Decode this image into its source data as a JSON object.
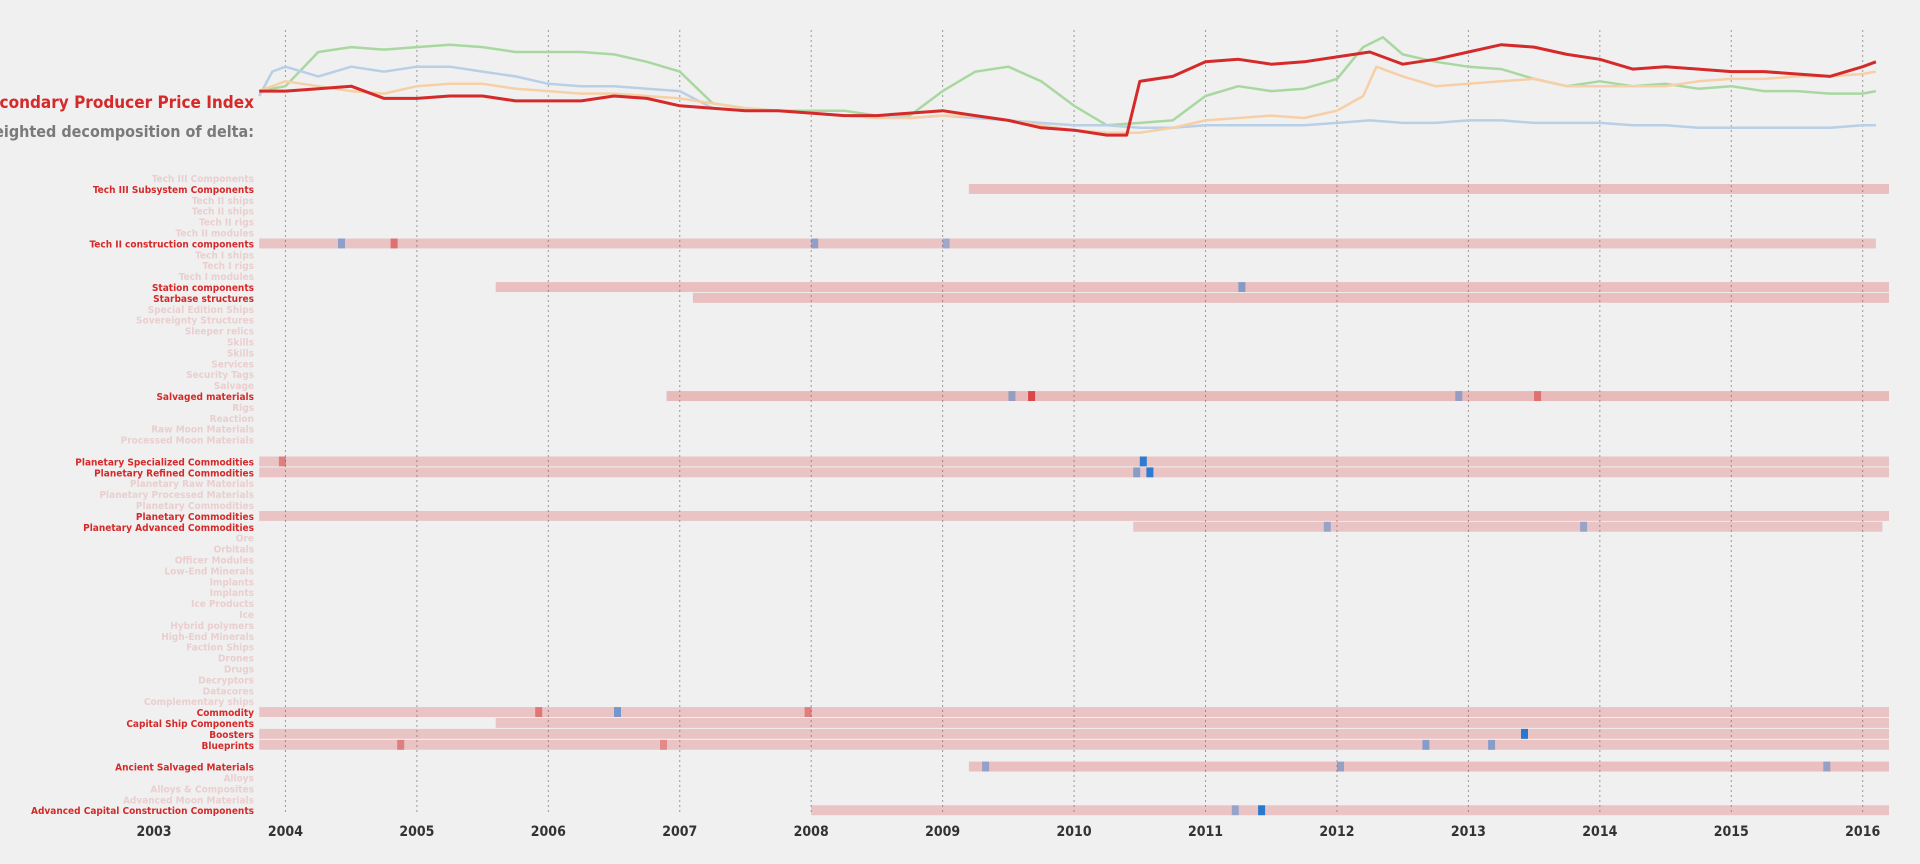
{
  "header": {
    "title": "Secondary Producer Price Index",
    "subtitle": "Weighted decomposition of delta:"
  },
  "colors": {
    "index_line": "#d42a2a",
    "green_line": "#a8d8a0",
    "blue_line": "#b8cfe6",
    "orange_line": "#f7cfa6",
    "positive": "#d42a2a",
    "negative": "#1f74d0",
    "faint_row": "#f1e0de",
    "active_label": "#d42a2a",
    "faded_label": "#eacfcf"
  },
  "chart_data": {
    "type": "line",
    "x_axis": {
      "ticks": [
        "2003",
        "2004",
        "2005",
        "2006",
        "2007",
        "2008",
        "2009",
        "2010",
        "2011",
        "2012",
        "2013",
        "2014",
        "2015",
        "2016"
      ],
      "range": [
        2003.0,
        2016.2
      ]
    },
    "series": [
      {
        "key": "index",
        "color": "#d42a2a",
        "x": [
          2003.8,
          2004.0,
          2004.25,
          2004.5,
          2004.75,
          2005.0,
          2005.25,
          2005.5,
          2005.75,
          2006.0,
          2006.25,
          2006.5,
          2006.75,
          2007.0,
          2007.25,
          2007.5,
          2007.75,
          2008.0,
          2008.25,
          2008.5,
          2008.75,
          2009.0,
          2009.25,
          2009.5,
          2009.75,
          2010.0,
          2010.25,
          2010.4,
          2010.5,
          2010.75,
          2011.0,
          2011.25,
          2011.5,
          2011.75,
          2012.0,
          2012.25,
          2012.5,
          2012.75,
          2013.0,
          2013.25,
          2013.5,
          2013.75,
          2014.0,
          2014.25,
          2014.5,
          2014.75,
          2015.0,
          2015.25,
          2015.5,
          2015.75,
          2016.0,
          2016.1
        ],
        "y": [
          60,
          60,
          61,
          62,
          57,
          57,
          58,
          58,
          56,
          56,
          56,
          58,
          57,
          54,
          53,
          52,
          52,
          51,
          50,
          50,
          51,
          52,
          50,
          48,
          45,
          44,
          42,
          42,
          64,
          66,
          72,
          73,
          71,
          72,
          74,
          76,
          71,
          73,
          76,
          79,
          78,
          75,
          73,
          69,
          70,
          69,
          68,
          68,
          67,
          66,
          70,
          72
        ]
      },
      {
        "key": "green",
        "color": "#a8d8a0",
        "x": [
          2003.8,
          2004.0,
          2004.25,
          2004.5,
          2004.75,
          2005.0,
          2005.25,
          2005.5,
          2005.75,
          2006.0,
          2006.25,
          2006.5,
          2006.75,
          2007.0,
          2007.25,
          2007.5,
          2007.75,
          2008.0,
          2008.25,
          2008.5,
          2008.75,
          2009.0,
          2009.25,
          2009.5,
          2009.75,
          2010.0,
          2010.25,
          2010.5,
          2010.75,
          2011.0,
          2011.25,
          2011.5,
          2011.75,
          2012.0,
          2012.2,
          2012.35,
          2012.5,
          2012.75,
          2013.0,
          2013.25,
          2013.5,
          2013.75,
          2014.0,
          2014.25,
          2014.5,
          2014.75,
          2015.0,
          2015.25,
          2015.5,
          2015.75,
          2016.0,
          2016.1
        ],
        "y": [
          60,
          62,
          76,
          78,
          77,
          78,
          79,
          78,
          76,
          76,
          76,
          75,
          72,
          68,
          55,
          53,
          52,
          52,
          52,
          50,
          50,
          60,
          68,
          70,
          64,
          54,
          46,
          47,
          48,
          58,
          62,
          60,
          61,
          65,
          78,
          82,
          75,
          72,
          70,
          69,
          65,
          62,
          64,
          62,
          63,
          61,
          62,
          60,
          60,
          59,
          59,
          60
        ]
      },
      {
        "key": "blue",
        "color": "#b8cfe6",
        "x": [
          2003.8,
          2003.9,
          2004.0,
          2004.25,
          2004.5,
          2004.75,
          2005.0,
          2005.25,
          2005.5,
          2005.75,
          2006.0,
          2006.25,
          2006.5,
          2006.75,
          2007.0,
          2007.25,
          2007.5,
          2007.75,
          2008.0,
          2008.25,
          2008.5,
          2008.75,
          2009.0,
          2009.25,
          2009.5,
          2009.75,
          2010.0,
          2010.25,
          2010.5,
          2010.75,
          2011.0,
          2011.25,
          2011.5,
          2011.75,
          2012.0,
          2012.25,
          2012.5,
          2012.75,
          2013.0,
          2013.25,
          2013.5,
          2013.75,
          2014.0,
          2014.25,
          2014.5,
          2014.75,
          2015.0,
          2015.25,
          2015.5,
          2015.75,
          2016.0,
          2016.1
        ],
        "y": [
          58,
          68,
          70,
          66,
          70,
          68,
          70,
          70,
          68,
          66,
          63,
          62,
          62,
          61,
          60,
          53,
          52,
          52,
          51,
          50,
          50,
          49,
          50,
          49,
          48,
          47,
          46,
          46,
          45,
          45,
          46,
          46,
          46,
          46,
          47,
          48,
          47,
          47,
          48,
          48,
          47,
          47,
          47,
          46,
          46,
          45,
          45,
          45,
          45,
          45,
          46,
          46
        ]
      },
      {
        "key": "orange",
        "color": "#f7cfa6",
        "x": [
          2003.8,
          2004.0,
          2004.25,
          2004.5,
          2004.75,
          2005.0,
          2005.25,
          2005.5,
          2005.75,
          2006.0,
          2006.25,
          2006.5,
          2006.75,
          2007.0,
          2007.25,
          2007.5,
          2007.75,
          2008.0,
          2008.25,
          2008.5,
          2008.75,
          2009.0,
          2009.25,
          2009.5,
          2009.75,
          2010.0,
          2010.25,
          2010.5,
          2010.75,
          2011.0,
          2011.25,
          2011.5,
          2011.75,
          2012.0,
          2012.2,
          2012.3,
          2012.5,
          2012.75,
          2013.0,
          2013.25,
          2013.5,
          2013.75,
          2014.0,
          2014.25,
          2014.5,
          2014.75,
          2015.0,
          2015.25,
          2015.5,
          2015.75,
          2016.0,
          2016.1
        ],
        "y": [
          60,
          64,
          62,
          60,
          59,
          62,
          63,
          63,
          61,
          60,
          59,
          59,
          58,
          57,
          55,
          53,
          52,
          51,
          50,
          49,
          49,
          50,
          50,
          48,
          46,
          44,
          43,
          43,
          45,
          48,
          49,
          50,
          49,
          52,
          58,
          70,
          66,
          62,
          63,
          64,
          65,
          62,
          62,
          62,
          62,
          64,
          65,
          65,
          66,
          66,
          67,
          68
        ]
      }
    ],
    "heatmap": {
      "rows": [
        {
          "label": "Tech III Components",
          "active": false,
          "cells": []
        },
        {
          "label": "Tech III Subsystem Components",
          "active": true,
          "cells": [
            {
              "x": 2009.2,
              "v": 0.15,
              "len": 7.0
            }
          ]
        },
        {
          "label": "Tech II ships",
          "active": false,
          "cells": []
        },
        {
          "label": "Tech II ships",
          "active": false,
          "cells": []
        },
        {
          "label": "Tech II rigs",
          "active": false,
          "cells": []
        },
        {
          "label": "Tech II modules",
          "active": false,
          "cells": []
        },
        {
          "label": "Tech II construction components",
          "active": true,
          "cells": [
            {
              "x": 2003.8,
              "v": 0.12,
              "len": 12.3
            },
            {
              "x": 2004.4,
              "v": -0.35,
              "len": 0.08
            },
            {
              "x": 2004.8,
              "v": 0.5,
              "len": 0.08
            },
            {
              "x": 2008.0,
              "v": -0.35,
              "len": 0.08
            },
            {
              "x": 2009.0,
              "v": -0.25,
              "len": 0.08
            }
          ]
        },
        {
          "label": "Tech I ships",
          "active": false,
          "cells": []
        },
        {
          "label": "Tech I rigs",
          "active": false,
          "cells": []
        },
        {
          "label": "Tech I modules",
          "active": false,
          "cells": []
        },
        {
          "label": "Station components",
          "active": true,
          "cells": [
            {
              "x": 2005.6,
              "v": 0.15,
              "len": 10.6
            },
            {
              "x": 2011.25,
              "v": -0.4,
              "len": 0.08
            }
          ]
        },
        {
          "label": "Starbase structures",
          "active": true,
          "cells": [
            {
              "x": 2007.1,
              "v": 0.15,
              "len": 9.1
            }
          ]
        },
        {
          "label": "Special Edition Ships",
          "active": false,
          "cells": []
        },
        {
          "label": "Sovereignty Structures",
          "active": false,
          "cells": []
        },
        {
          "label": "Sleeper relics",
          "active": false,
          "cells": []
        },
        {
          "label": "Skills",
          "active": false,
          "cells": []
        },
        {
          "label": "Skills",
          "active": false,
          "cells": []
        },
        {
          "label": "Services",
          "active": false,
          "cells": []
        },
        {
          "label": "Security Tags",
          "active": false,
          "cells": []
        },
        {
          "label": "Salvage",
          "active": false,
          "cells": []
        },
        {
          "label": "Salvaged materials",
          "active": true,
          "cells": [
            {
              "x": 2006.9,
              "v": 0.18,
              "len": 9.3
            },
            {
              "x": 2009.65,
              "v": 0.8,
              "len": 0.08
            },
            {
              "x": 2009.5,
              "v": -0.3,
              "len": 0.08
            },
            {
              "x": 2012.9,
              "v": -0.3,
              "len": 0.08
            },
            {
              "x": 2013.5,
              "v": 0.45,
              "len": 0.08
            }
          ]
        },
        {
          "label": "Rigs",
          "active": false,
          "cells": []
        },
        {
          "label": "Reaction",
          "active": false,
          "cells": []
        },
        {
          "label": "Raw Moon Materials",
          "active": false,
          "cells": []
        },
        {
          "label": "Processed Moon Materials",
          "active": false,
          "cells": []
        },
        {
          "label": "",
          "active": false,
          "cells": []
        },
        {
          "label": "Planetary Specialized Commodities",
          "active": true,
          "cells": [
            {
              "x": 2003.8,
              "v": 0.12,
              "len": 12.4
            },
            {
              "x": 2003.95,
              "v": 0.4,
              "len": 0.08
            },
            {
              "x": 2010.5,
              "v": -0.9,
              "len": 0.08
            }
          ]
        },
        {
          "label": "Planetary Refined Commodities",
          "active": true,
          "cells": [
            {
              "x": 2003.8,
              "v": 0.12,
              "len": 12.4
            },
            {
              "x": 2010.45,
              "v": -0.4,
              "len": 0.08
            },
            {
              "x": 2010.55,
              "v": -0.9,
              "len": 0.08
            }
          ]
        },
        {
          "label": "Planetary Raw Materials",
          "active": false,
          "cells": []
        },
        {
          "label": "Planetary Processed Materials",
          "active": false,
          "cells": []
        },
        {
          "label": "Planetary Commodities",
          "active": false,
          "cells": []
        },
        {
          "label": "Planetary Commodities",
          "active": true,
          "cells": [
            {
              "x": 2003.8,
              "v": 0.12,
              "len": 12.4
            }
          ]
        },
        {
          "label": "Planetary Advanced Commodities",
          "active": true,
          "cells": [
            {
              "x": 2010.45,
              "v": 0.12,
              "len": 5.7
            },
            {
              "x": 2011.9,
              "v": -0.3,
              "len": 0.08
            },
            {
              "x": 2013.85,
              "v": -0.3,
              "len": 0.08
            }
          ]
        },
        {
          "label": "Ore",
          "active": false,
          "cells": []
        },
        {
          "label": "Orbitals",
          "active": false,
          "cells": []
        },
        {
          "label": "Officer Modules",
          "active": false,
          "cells": []
        },
        {
          "label": "Low-End Minerals",
          "active": false,
          "cells": []
        },
        {
          "label": "Implants",
          "active": false,
          "cells": []
        },
        {
          "label": "Implants",
          "active": false,
          "cells": []
        },
        {
          "label": "Ice Products",
          "active": false,
          "cells": []
        },
        {
          "label": "Ice",
          "active": false,
          "cells": []
        },
        {
          "label": "Hybrid polymers",
          "active": false,
          "cells": []
        },
        {
          "label": "High-End Minerals",
          "active": false,
          "cells": []
        },
        {
          "label": "Faction Ships",
          "active": false,
          "cells": []
        },
        {
          "label": "Drones",
          "active": false,
          "cells": []
        },
        {
          "label": "Drugs",
          "active": false,
          "cells": []
        },
        {
          "label": "Decryptors",
          "active": false,
          "cells": []
        },
        {
          "label": "Datacores",
          "active": false,
          "cells": []
        },
        {
          "label": "Complementary ships",
          "active": false,
          "cells": []
        },
        {
          "label": "Commodity",
          "active": true,
          "cells": [
            {
              "x": 2003.8,
              "v": 0.12,
              "len": 12.4
            },
            {
              "x": 2005.9,
              "v": 0.45,
              "len": 0.08
            },
            {
              "x": 2006.5,
              "v": -0.5,
              "len": 0.08
            },
            {
              "x": 2007.95,
              "v": 0.4,
              "len": 0.08
            }
          ]
        },
        {
          "label": "Capital Ship Components",
          "active": true,
          "cells": [
            {
              "x": 2005.6,
              "v": 0.12,
              "len": 10.6
            }
          ]
        },
        {
          "label": "Boosters",
          "active": true,
          "cells": [
            {
              "x": 2003.8,
              "v": 0.12,
              "len": 12.4
            },
            {
              "x": 2013.4,
              "v": -0.95,
              "len": 0.08
            }
          ]
        },
        {
          "label": "Blueprints",
          "active": true,
          "cells": [
            {
              "x": 2003.8,
              "v": 0.12,
              "len": 12.4
            },
            {
              "x": 2004.85,
              "v": 0.4,
              "len": 0.08
            },
            {
              "x": 2006.85,
              "v": 0.3,
              "len": 0.08
            },
            {
              "x": 2012.65,
              "v": -0.4,
              "len": 0.08
            },
            {
              "x": 2013.15,
              "v": -0.4,
              "len": 0.08
            }
          ]
        },
        {
          "label": "",
          "active": false,
          "cells": []
        },
        {
          "label": "Ancient Salvaged Materials",
          "active": true,
          "cells": [
            {
              "x": 2009.2,
              "v": 0.15,
              "len": 7.0
            },
            {
              "x": 2009.3,
              "v": -0.3,
              "len": 0.08
            },
            {
              "x": 2012.0,
              "v": -0.3,
              "len": 0.08
            },
            {
              "x": 2015.7,
              "v": -0.3,
              "len": 0.16
            }
          ]
        },
        {
          "label": "Alloys",
          "active": false,
          "cells": []
        },
        {
          "label": "Alloys & Composites",
          "active": false,
          "cells": []
        },
        {
          "label": "Advanced Moon Materials",
          "active": false,
          "cells": []
        },
        {
          "label": "Advanced Capital Construction Components",
          "active": true,
          "cells": [
            {
              "x": 2008.0,
              "v": 0.12,
              "len": 8.2
            },
            {
              "x": 2011.4,
              "v": -0.95,
              "len": 0.08
            },
            {
              "x": 2011.2,
              "v": -0.3,
              "len": 0.08
            }
          ]
        }
      ]
    }
  }
}
